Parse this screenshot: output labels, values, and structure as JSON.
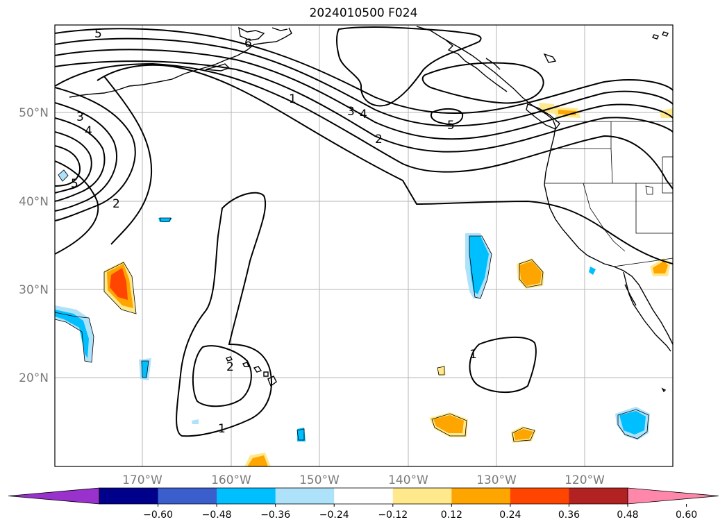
{
  "title": "2024010500 F024",
  "latitude_labels": [
    "50°N",
    "40°N",
    "30°N",
    "20°N"
  ],
  "longitude_labels": [
    "170°W",
    "160°W",
    "150°W",
    "140°W",
    "130°W",
    "120°W"
  ],
  "colorbar": {
    "ticks": [
      "−0.60",
      "−0.48",
      "−0.36",
      "−0.24",
      "−0.12",
      "0.12",
      "0.24",
      "0.36",
      "0.48",
      "0.60"
    ],
    "colors": [
      "#9932cc",
      "#00008b",
      "#3a5fcd",
      "#00bfff",
      "#aee2fa",
      "#ffffff",
      "#ffe98c",
      "#ffa500",
      "#ff4500",
      "#b22222",
      "#ff88aa"
    ]
  },
  "contour_labels": [
    "5",
    "6",
    "3",
    "4",
    "5",
    "2",
    "1",
    "3",
    "4",
    "2",
    "5",
    "2",
    "1",
    "1"
  ]
}
